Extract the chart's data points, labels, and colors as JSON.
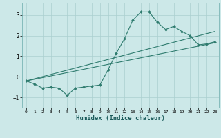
{
  "xlabel": "Humidex (Indice chaleur)",
  "ylabel": "",
  "bg_color": "#cce8e8",
  "grid_color": "#aacfcf",
  "line_color": "#2e7b6e",
  "xlim": [
    -0.5,
    23.5
  ],
  "ylim": [
    -1.5,
    3.6
  ],
  "yticks": [
    -1,
    0,
    1,
    2,
    3
  ],
  "xticks": [
    0,
    1,
    2,
    3,
    4,
    5,
    6,
    7,
    8,
    9,
    10,
    11,
    12,
    13,
    14,
    15,
    16,
    17,
    18,
    19,
    20,
    21,
    22,
    23
  ],
  "line1_x": [
    0,
    1,
    2,
    3,
    4,
    5,
    6,
    7,
    8,
    9,
    10,
    11,
    12,
    13,
    14,
    15,
    16,
    17,
    18,
    19,
    20,
    21,
    22,
    23
  ],
  "line1_y": [
    -0.2,
    -0.35,
    -0.55,
    -0.5,
    -0.55,
    -0.9,
    -0.55,
    -0.5,
    -0.45,
    -0.4,
    0.35,
    1.15,
    1.85,
    2.75,
    3.15,
    3.15,
    2.65,
    2.3,
    2.45,
    2.2,
    2.0,
    1.55,
    1.6,
    1.7
  ],
  "line2_x": [
    0,
    23
  ],
  "line2_y": [
    -0.2,
    2.2
  ],
  "line3_x": [
    0,
    23
  ],
  "line3_y": [
    -0.2,
    1.65
  ]
}
